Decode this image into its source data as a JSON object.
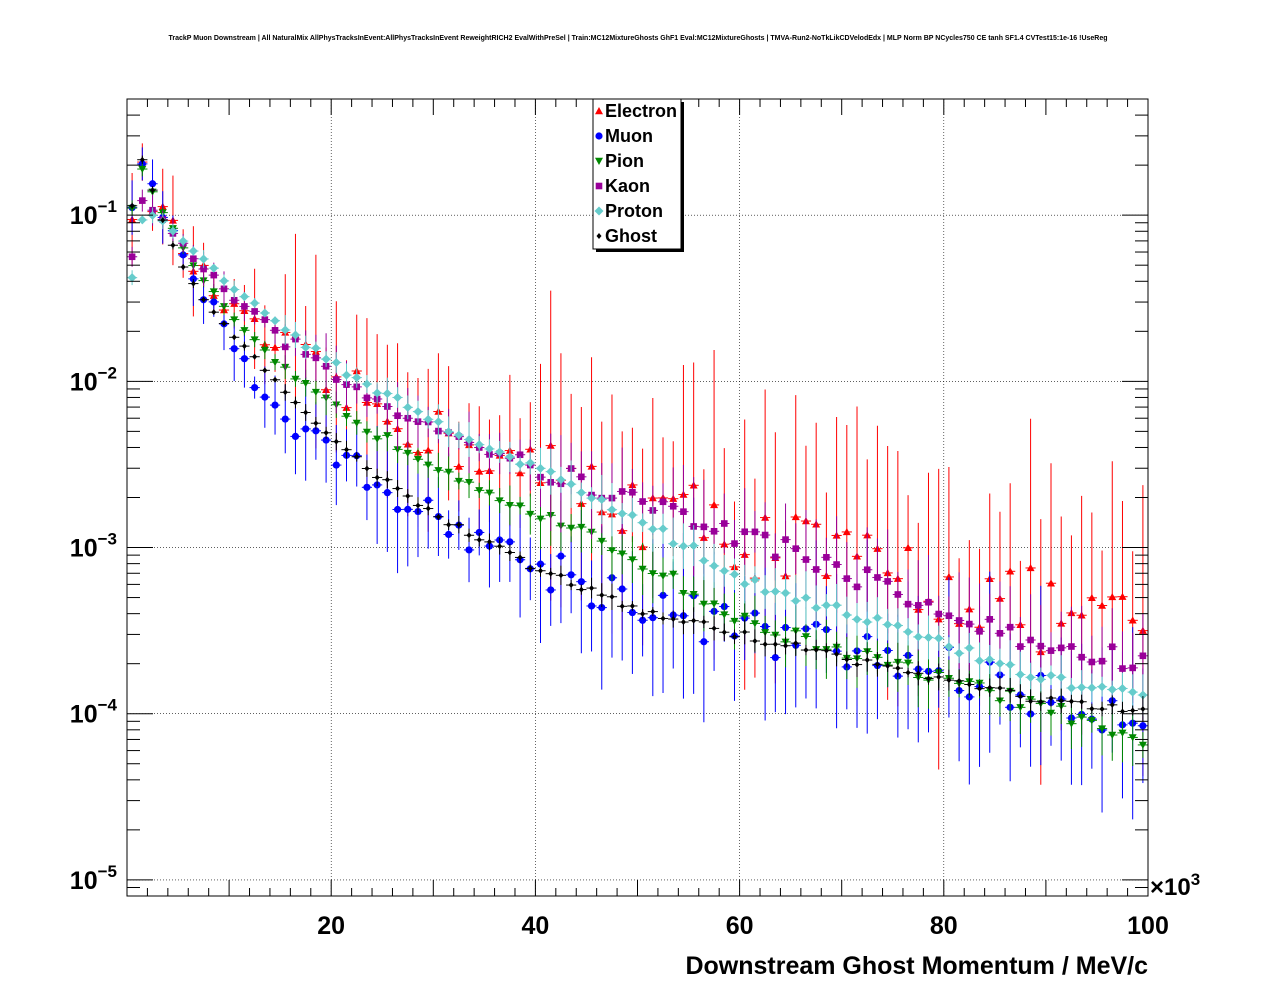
{
  "title": "TrackP Muon Downstream | All NaturalMix AllPhysTracksInEvent:AllPhysTracksInEvent ReweightRICH2 EvalWithPreSel | Train:MC12MixtureGhosts GhF1 Eval:MC12MixtureGhosts | TMVA-Run2-NoTkLikCDVelodEdx | MLP Norm BP NCycles750 CE tanh SF1.4 CVTest15:1e-16 !UseReg",
  "chart_data": {
    "type": "scatter",
    "title": "TrackP Muon Downstream | All NaturalMix AllPhysTracksInEvent:AllPhysTracksInEvent ReweightRICH2 EvalWithPreSel | Train:MC12MixtureGhosts GhF1 Eval:MC12MixtureGhosts | TMVA-Run2-NoTkLikCDVelodEdx | MLP Norm BP NCycles750 CE tanh SF1.4 CVTest15:1e-16 !UseReg",
    "xlabel": "Downstream Ghost Momentum / MeV/c",
    "x_multiplier": "×10³",
    "ylabel": "",
    "yscale": "log",
    "xlim": [
      0,
      100000
    ],
    "ylim": [
      8e-06,
      0.5
    ],
    "grid": true,
    "legend_position": "top-center",
    "x_ticks": [
      {
        "value": 20000,
        "label": "20"
      },
      {
        "value": 40000,
        "label": "40"
      },
      {
        "value": 60000,
        "label": "60"
      },
      {
        "value": 80000,
        "label": "80"
      },
      {
        "value": 100000,
        "label": "100"
      }
    ],
    "y_ticks": [
      {
        "value": 1e-05,
        "base": "10",
        "exp": "−5"
      },
      {
        "value": 0.0001,
        "base": "10",
        "exp": "−4"
      },
      {
        "value": 0.001,
        "base": "10",
        "exp": "−3"
      },
      {
        "value": 0.01,
        "base": "10",
        "exp": "−2"
      },
      {
        "value": 0.1,
        "base": "10",
        "exp": "−1"
      }
    ],
    "series": [
      {
        "name": "Electron",
        "color": "#ff0000",
        "marker": "triangle-up",
        "noise": 0.28,
        "err": 0.35,
        "knots": [
          [
            0,
            0.055
          ],
          [
            1000,
            0.22
          ],
          [
            2000,
            0.14
          ],
          [
            3000,
            0.115
          ],
          [
            5000,
            0.07
          ],
          [
            7000,
            0.045
          ],
          [
            10000,
            0.027
          ],
          [
            15000,
            0.015
          ],
          [
            20000,
            0.0095
          ],
          [
            25000,
            0.0065
          ],
          [
            30000,
            0.0048
          ],
          [
            40000,
            0.0028
          ],
          [
            50000,
            0.0018
          ],
          [
            60000,
            0.0012
          ],
          [
            70000,
            0.0008
          ],
          [
            80000,
            0.0006
          ],
          [
            90000,
            0.0004
          ],
          [
            100000,
            0.0003
          ]
        ]
      },
      {
        "name": "Muon",
        "color": "#0000ff",
        "marker": "circle",
        "noise": 0.16,
        "err": 0.22,
        "knots": [
          [
            0,
            0.05
          ],
          [
            1000,
            0.25
          ],
          [
            2000,
            0.18
          ],
          [
            3000,
            0.11
          ],
          [
            5000,
            0.065
          ],
          [
            7000,
            0.038
          ],
          [
            10000,
            0.02
          ],
          [
            13000,
            0.0085
          ],
          [
            15000,
            0.0068
          ],
          [
            20000,
            0.0038
          ],
          [
            25000,
            0.0024
          ],
          [
            30000,
            0.0015
          ],
          [
            40000,
            0.0008
          ],
          [
            50000,
            0.00048
          ],
          [
            60000,
            0.00032
          ],
          [
            70000,
            0.00024
          ],
          [
            80000,
            0.00019
          ],
          [
            90000,
            0.00012
          ],
          [
            100000,
            0.0001
          ]
        ]
      },
      {
        "name": "Pion",
        "color": "#008800",
        "marker": "triangle-down",
        "noise": 0.05,
        "err": 0.07,
        "knots": [
          [
            0,
            0.052
          ],
          [
            1000,
            0.24
          ],
          [
            2000,
            0.16
          ],
          [
            3000,
            0.115
          ],
          [
            5000,
            0.072
          ],
          [
            7000,
            0.045
          ],
          [
            10000,
            0.025
          ],
          [
            15000,
            0.012
          ],
          [
            20000,
            0.0072
          ],
          [
            25000,
            0.0046
          ],
          [
            30000,
            0.0032
          ],
          [
            40000,
            0.0016
          ],
          [
            50000,
            0.00085
          ],
          [
            60000,
            0.00036
          ],
          [
            70000,
            0.00024
          ],
          [
            80000,
            0.00016
          ],
          [
            90000,
            0.00011
          ],
          [
            100000,
            6e-05
          ]
        ]
      },
      {
        "name": "Kaon",
        "color": "#990099",
        "marker": "square",
        "noise": 0.08,
        "err": 0.12,
        "knots": [
          [
            0,
            0.025
          ],
          [
            1000,
            0.12
          ],
          [
            2000,
            0.12
          ],
          [
            3000,
            0.105
          ],
          [
            5000,
            0.072
          ],
          [
            7000,
            0.052
          ],
          [
            10000,
            0.033
          ],
          [
            15000,
            0.019
          ],
          [
            20000,
            0.011
          ],
          [
            25000,
            0.0075
          ],
          [
            30000,
            0.0055
          ],
          [
            35000,
            0.004
          ],
          [
            40000,
            0.003
          ],
          [
            50000,
            0.0019
          ],
          [
            60000,
            0.0012
          ],
          [
            70000,
            0.00075
          ],
          [
            80000,
            0.0004
          ],
          [
            90000,
            0.00025
          ],
          [
            100000,
            0.0002
          ]
        ]
      },
      {
        "name": "Proton",
        "color": "#66cccc",
        "marker": "diamond",
        "noise": 0.04,
        "err": 0.06,
        "knots": [
          [
            0,
            0.02
          ],
          [
            1000,
            0.09
          ],
          [
            2000,
            0.095
          ],
          [
            3000,
            0.1
          ],
          [
            5000,
            0.075
          ],
          [
            7000,
            0.058
          ],
          [
            10000,
            0.038
          ],
          [
            15000,
            0.022
          ],
          [
            20000,
            0.013
          ],
          [
            25000,
            0.0085
          ],
          [
            30000,
            0.0058
          ],
          [
            40000,
            0.003
          ],
          [
            50000,
            0.0015
          ],
          [
            60000,
            0.00065
          ],
          [
            70000,
            0.00042
          ],
          [
            80000,
            0.00026
          ],
          [
            90000,
            0.00016
          ],
          [
            100000,
            0.00013
          ]
        ]
      },
      {
        "name": "Ghost",
        "color": "#000000",
        "marker": "diamond-small",
        "noise": 0.03,
        "err": 0.03,
        "knots": [
          [
            0,
            0.05
          ],
          [
            1000,
            0.25
          ],
          [
            2000,
            0.18
          ],
          [
            3000,
            0.11
          ],
          [
            5000,
            0.055
          ],
          [
            7000,
            0.034
          ],
          [
            10000,
            0.02
          ],
          [
            15000,
            0.0095
          ],
          [
            20000,
            0.0045
          ],
          [
            25000,
            0.0026
          ],
          [
            30000,
            0.0016
          ],
          [
            40000,
            0.00075
          ],
          [
            50000,
            0.00042
          ],
          [
            60000,
            0.0003
          ],
          [
            70000,
            0.00022
          ],
          [
            80000,
            0.00016
          ],
          [
            90000,
            0.00012
          ],
          [
            100000,
            0.0001
          ]
        ]
      }
    ]
  }
}
